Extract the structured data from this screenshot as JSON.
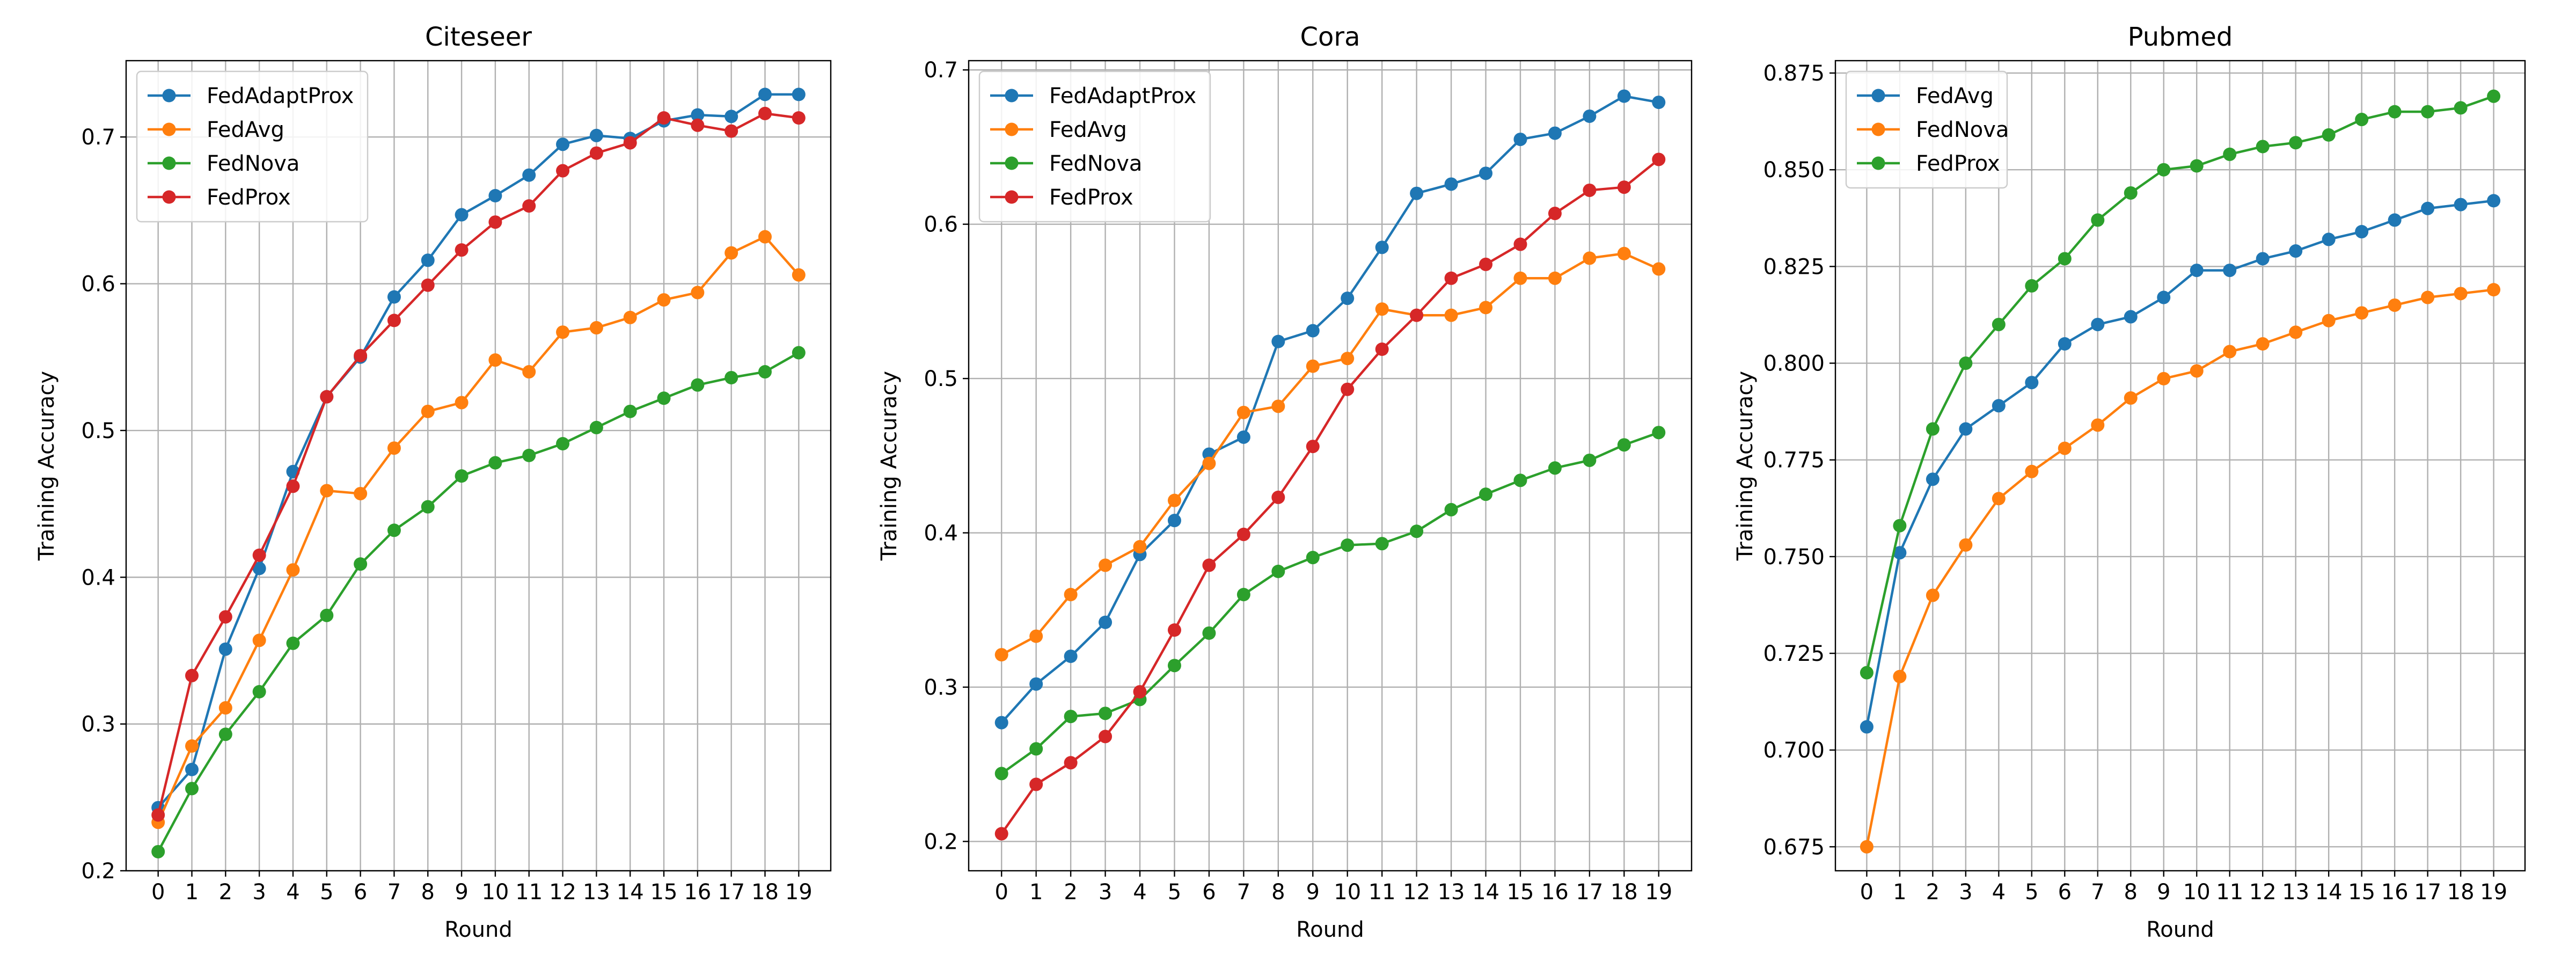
{
  "chart_data": [
    {
      "type": "line",
      "title": "Citeseer",
      "xlabel": "Round",
      "ylabel": "Training Accuracy",
      "x": [
        0,
        1,
        2,
        3,
        4,
        5,
        6,
        7,
        8,
        9,
        10,
        11,
        12,
        13,
        14,
        15,
        16,
        17,
        18,
        19
      ],
      "xlim": [
        -0.95,
        19.95
      ],
      "ylim": [
        0.2,
        0.752
      ],
      "yticks": [
        0.2,
        0.3,
        0.4,
        0.5,
        0.6,
        0.7
      ],
      "ytick_labels": [
        "0.2",
        "0.3",
        "0.4",
        "0.5",
        "0.6",
        "0.7"
      ],
      "grid": true,
      "legend_position": "upper left",
      "series": [
        {
          "name": "FedAdaptProx",
          "color": "#1f77b4",
          "values": [
            0.243,
            0.269,
            0.351,
            0.406,
            0.472,
            0.523,
            0.55,
            0.591,
            0.616,
            0.647,
            0.66,
            0.674,
            0.695,
            0.701,
            0.699,
            0.711,
            0.715,
            0.714,
            0.729,
            0.729
          ]
        },
        {
          "name": "FedAvg",
          "color": "#ff7f0e",
          "values": [
            0.233,
            0.285,
            0.311,
            0.357,
            0.405,
            0.459,
            0.457,
            0.488,
            0.513,
            0.519,
            0.548,
            0.54,
            0.567,
            0.57,
            0.577,
            0.589,
            0.594,
            0.621,
            0.632,
            0.606
          ]
        },
        {
          "name": "FedNova",
          "color": "#2ca02c",
          "values": [
            0.213,
            0.256,
            0.293,
            0.322,
            0.355,
            0.374,
            0.409,
            0.432,
            0.448,
            0.469,
            0.478,
            0.483,
            0.491,
            0.502,
            0.513,
            0.522,
            0.531,
            0.536,
            0.54,
            0.553
          ]
        },
        {
          "name": "FedProx",
          "color": "#d62728",
          "values": [
            0.238,
            0.333,
            0.373,
            0.415,
            0.462,
            0.523,
            0.551,
            0.575,
            0.599,
            0.623,
            0.642,
            0.653,
            0.677,
            0.689,
            0.696,
            0.713,
            0.708,
            0.704,
            0.716,
            0.713
          ]
        }
      ]
    },
    {
      "type": "line",
      "title": "Cora",
      "xlabel": "Round",
      "ylabel": "Training Accuracy",
      "x": [
        0,
        1,
        2,
        3,
        4,
        5,
        6,
        7,
        8,
        9,
        10,
        11,
        12,
        13,
        14,
        15,
        16,
        17,
        18,
        19
      ],
      "xlim": [
        -0.95,
        19.95
      ],
      "ylim": [
        0.181,
        0.706
      ],
      "yticks": [
        0.2,
        0.3,
        0.4,
        0.5,
        0.6,
        0.7
      ],
      "ytick_labels": [
        "0.2",
        "0.3",
        "0.4",
        "0.5",
        "0.6",
        "0.7"
      ],
      "grid": true,
      "legend_position": "upper left",
      "series": [
        {
          "name": "FedAdaptProx",
          "color": "#1f77b4",
          "values": [
            0.277,
            0.302,
            0.32,
            0.342,
            0.386,
            0.408,
            0.451,
            0.462,
            0.524,
            0.531,
            0.552,
            0.585,
            0.62,
            0.626,
            0.633,
            0.655,
            0.659,
            0.67,
            0.683,
            0.679
          ]
        },
        {
          "name": "FedAvg",
          "color": "#ff7f0e",
          "values": [
            0.321,
            0.333,
            0.36,
            0.379,
            0.391,
            0.421,
            0.445,
            0.478,
            0.482,
            0.508,
            0.513,
            0.545,
            0.541,
            0.541,
            0.546,
            0.565,
            0.565,
            0.578,
            0.581,
            0.571
          ]
        },
        {
          "name": "FedNova",
          "color": "#2ca02c",
          "values": [
            0.244,
            0.26,
            0.281,
            0.283,
            0.292,
            0.314,
            0.335,
            0.36,
            0.375,
            0.384,
            0.392,
            0.393,
            0.401,
            0.415,
            0.425,
            0.434,
            0.442,
            0.447,
            0.457,
            0.465
          ]
        },
        {
          "name": "FedProx",
          "color": "#d62728",
          "values": [
            0.205,
            0.237,
            0.251,
            0.268,
            0.297,
            0.337,
            0.379,
            0.399,
            0.423,
            0.456,
            0.493,
            0.519,
            0.541,
            0.565,
            0.574,
            0.587,
            0.607,
            0.622,
            0.624,
            0.642
          ]
        }
      ]
    },
    {
      "type": "line",
      "title": "Pubmed",
      "xlabel": "Round",
      "ylabel": "Training Accuracy",
      "x": [
        0,
        1,
        2,
        3,
        4,
        5,
        6,
        7,
        8,
        9,
        10,
        11,
        12,
        13,
        14,
        15,
        16,
        17,
        18,
        19
      ],
      "xlim": [
        -0.95,
        19.95
      ],
      "ylim": [
        0.6688,
        0.8782
      ],
      "yticks": [
        0.675,
        0.7,
        0.725,
        0.75,
        0.775,
        0.8,
        0.825,
        0.85,
        0.875
      ],
      "ytick_labels": [
        "0.675",
        "0.700",
        "0.725",
        "0.750",
        "0.775",
        "0.800",
        "0.825",
        "0.850",
        "0.875"
      ],
      "grid": true,
      "legend_position": "upper left",
      "series": [
        {
          "name": "FedAvg",
          "color": "#1f77b4",
          "values": [
            0.706,
            0.751,
            0.77,
            0.783,
            0.789,
            0.795,
            0.805,
            0.81,
            0.812,
            0.817,
            0.824,
            0.824,
            0.827,
            0.829,
            0.832,
            0.834,
            0.837,
            0.84,
            0.841,
            0.842
          ]
        },
        {
          "name": "FedNova",
          "color": "#ff7f0e",
          "values": [
            0.675,
            0.719,
            0.74,
            0.753,
            0.765,
            0.772,
            0.778,
            0.784,
            0.791,
            0.796,
            0.798,
            0.803,
            0.805,
            0.808,
            0.811,
            0.813,
            0.815,
            0.817,
            0.818,
            0.819
          ]
        },
        {
          "name": "FedProx",
          "color": "#2ca02c",
          "values": [
            0.72,
            0.758,
            0.783,
            0.8,
            0.81,
            0.82,
            0.827,
            0.837,
            0.844,
            0.85,
            0.851,
            0.854,
            0.856,
            0.857,
            0.859,
            0.863,
            0.865,
            0.865,
            0.866,
            0.869
          ]
        }
      ]
    }
  ]
}
